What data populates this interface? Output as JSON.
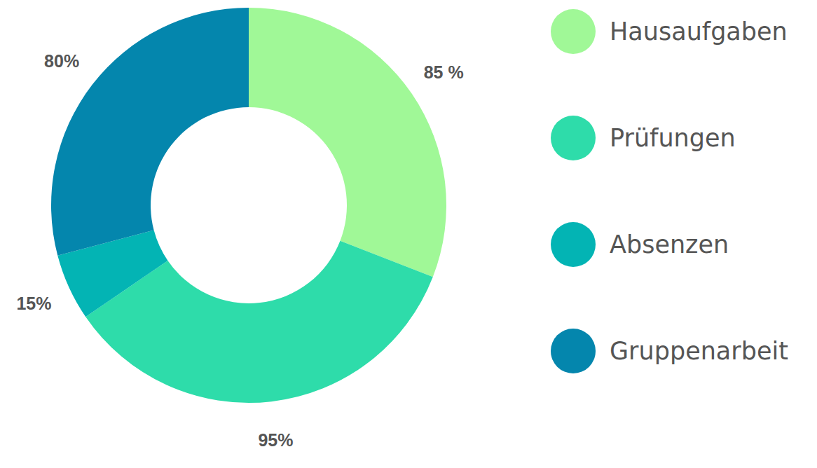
{
  "chart_data": {
    "type": "pie",
    "categories": [
      "Hausaufgaben",
      "Prüfungen",
      "Absenzen",
      "Gruppenarbeit"
    ],
    "values": [
      85,
      95,
      15,
      80
    ],
    "value_labels": [
      "85 %",
      "95%",
      "15%",
      "80%"
    ],
    "colors": [
      "#a0f897",
      "#2edcaa",
      "#03b4b4",
      "#0486ad"
    ],
    "data_labels": true,
    "legend": "right"
  }
}
